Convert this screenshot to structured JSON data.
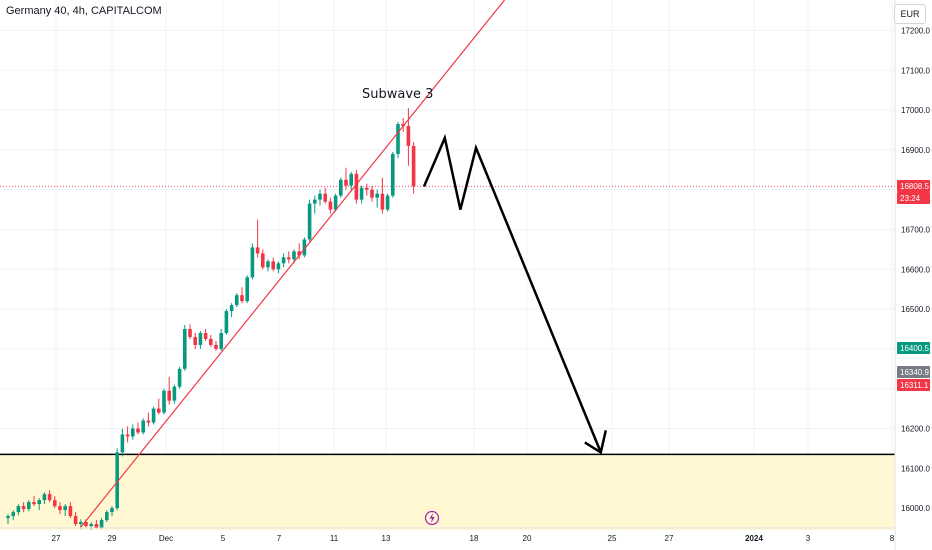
{
  "header": {
    "symbol_line": "Germany 40, 4h, CAPITALCOM",
    "currency": "EUR"
  },
  "chart_data": {
    "type": "candlestick",
    "title": "Germany 40, 4h, CAPITALCOM",
    "ylim": [
      15945,
      17280
    ],
    "y_ticks": [
      "17200.0",
      "17100.0",
      "17000.0",
      "16900.0",
      "16700.0",
      "16600.0",
      "16500.0",
      "16200.0",
      "16100.0",
      "16000.0"
    ],
    "x_ticks": [
      "27",
      "29",
      "Dec",
      "5",
      "7",
      "11",
      "13",
      "18",
      "20",
      "25",
      "27",
      "2024",
      "3",
      "8"
    ],
    "candles": [
      [
        15975,
        15985,
        15960,
        15980
      ],
      [
        15980,
        15995,
        15970,
        15990
      ],
      [
        15990,
        16010,
        15982,
        16005
      ],
      [
        16005,
        16015,
        15990,
        15998
      ],
      [
        15998,
        16020,
        15992,
        16015
      ],
      [
        16015,
        16030,
        16005,
        16010
      ],
      [
        16010,
        16025,
        15995,
        16020
      ],
      [
        16020,
        16040,
        16010,
        16035
      ],
      [
        16035,
        16045,
        16015,
        16020
      ],
      [
        16020,
        16030,
        16000,
        16005
      ],
      [
        16005,
        16015,
        15985,
        15995
      ],
      [
        15995,
        16010,
        15980,
        16005
      ],
      [
        16005,
        16015,
        15975,
        15980
      ],
      [
        15980,
        15990,
        15955,
        15960
      ],
      [
        15960,
        15972,
        15948,
        15965
      ],
      [
        15965,
        15972,
        15950,
        15955
      ],
      [
        15955,
        15965,
        15946,
        15960
      ],
      [
        15960,
        15970,
        15948,
        15950
      ],
      [
        15950,
        15975,
        15948,
        15970
      ],
      [
        15970,
        15995,
        15965,
        15990
      ],
      [
        15990,
        16005,
        15980,
        16000
      ],
      [
        16000,
        16150,
        15995,
        16140
      ],
      [
        16140,
        16200,
        16130,
        16185
      ],
      [
        16185,
        16205,
        16165,
        16180
      ],
      [
        16180,
        16210,
        16172,
        16200
      ],
      [
        16200,
        16215,
        16185,
        16190
      ],
      [
        16190,
        16225,
        16185,
        16220
      ],
      [
        16220,
        16240,
        16205,
        16215
      ],
      [
        16215,
        16255,
        16210,
        16250
      ],
      [
        16250,
        16275,
        16235,
        16240
      ],
      [
        16240,
        16300,
        16235,
        16295
      ],
      [
        16295,
        16330,
        16260,
        16270
      ],
      [
        16270,
        16310,
        16262,
        16305
      ],
      [
        16305,
        16355,
        16300,
        16350
      ],
      [
        16350,
        16460,
        16345,
        16450
      ],
      [
        16450,
        16462,
        16425,
        16430
      ],
      [
        16430,
        16440,
        16400,
        16410
      ],
      [
        16410,
        16445,
        16400,
        16440
      ],
      [
        16440,
        16450,
        16420,
        16425
      ],
      [
        16425,
        16435,
        16405,
        16410
      ],
      [
        16410,
        16420,
        16395,
        16400
      ],
      [
        16400,
        16450,
        16395,
        16440
      ],
      [
        16440,
        16500,
        16435,
        16495
      ],
      [
        16495,
        16515,
        16480,
        16510
      ],
      [
        16510,
        16540,
        16505,
        16535
      ],
      [
        16535,
        16555,
        16515,
        16520
      ],
      [
        16520,
        16585,
        16515,
        16580
      ],
      [
        16580,
        16665,
        16575,
        16655
      ],
      [
        16655,
        16725,
        16630,
        16640
      ],
      [
        16640,
        16650,
        16600,
        16605
      ],
      [
        16605,
        16625,
        16595,
        16620
      ],
      [
        16620,
        16630,
        16595,
        16600
      ],
      [
        16600,
        16620,
        16590,
        16615
      ],
      [
        16615,
        16640,
        16605,
        16630
      ],
      [
        16630,
        16645,
        16615,
        16625
      ],
      [
        16625,
        16650,
        16615,
        16645
      ],
      [
        16645,
        16665,
        16625,
        16635
      ],
      [
        16635,
        16680,
        16630,
        16675
      ],
      [
        16675,
        16775,
        16670,
        16765
      ],
      [
        16765,
        16785,
        16740,
        16775
      ],
      [
        16775,
        16800,
        16760,
        16790
      ],
      [
        16790,
        16805,
        16765,
        16770
      ],
      [
        16770,
        16780,
        16740,
        16750
      ],
      [
        16750,
        16790,
        16745,
        16785
      ],
      [
        16785,
        16830,
        16780,
        16825
      ],
      [
        16825,
        16855,
        16800,
        16810
      ],
      [
        16810,
        16845,
        16795,
        16840
      ],
      [
        16840,
        16850,
        16765,
        16775
      ],
      [
        16775,
        16810,
        16765,
        16805
      ],
      [
        16805,
        16815,
        16785,
        16800
      ],
      [
        16800,
        16810,
        16770,
        16780
      ],
      [
        16780,
        16800,
        16755,
        16790
      ],
      [
        16790,
        16830,
        16740,
        16750
      ],
      [
        16750,
        16790,
        16745,
        16785
      ],
      [
        16785,
        16895,
        16780,
        16890
      ],
      [
        16890,
        16970,
        16880,
        16965
      ],
      [
        16965,
        16980,
        16945,
        16960
      ],
      [
        16960,
        17005,
        16860,
        16910
      ],
      [
        16910,
        16920,
        16790,
        16808.5
      ]
    ],
    "trendline": {
      "from": {
        "bar": 14,
        "price": 15952
      },
      "to": {
        "bar": 100,
        "price": 17350
      },
      "color": "#f23645"
    },
    "support_level": 16135,
    "support_zone": [
      15945,
      16135
    ],
    "current_price": 16808.5,
    "projection": [
      [
        80,
        16808
      ],
      [
        84,
        16930
      ],
      [
        87,
        16750
      ],
      [
        90,
        16905
      ],
      [
        114,
        16140
      ]
    ],
    "annotation": "Subwave 3",
    "price_badges": [
      {
        "label": "16808.5",
        "color": "#f23645"
      },
      {
        "label": "23:24",
        "color": "#f23645"
      },
      {
        "label": "16400.5",
        "color": "#089981"
      },
      {
        "label": "16340.9",
        "color": "#787b86"
      },
      {
        "label": "16311.1",
        "color": "#f23645"
      }
    ],
    "colors": {
      "up": "#089981",
      "down": "#f23645",
      "zone": "#fff8d2",
      "grid": "#f0f3fa"
    }
  }
}
